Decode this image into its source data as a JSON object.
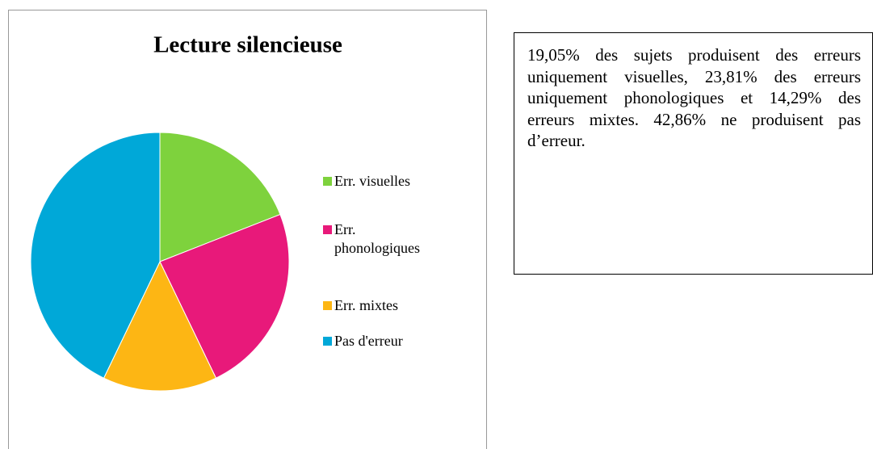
{
  "chart_data": {
    "type": "pie",
    "title": "Lecture silencieuse",
    "categories": [
      "Err. visuelles",
      "Err. phonologiques",
      "Err. mixtes",
      "Pas d'erreur"
    ],
    "values": [
      19.05,
      23.81,
      14.29,
      42.86
    ],
    "colors": [
      "#7ed23d",
      "#e8197a",
      "#fdb614",
      "#00a8d8"
    ],
    "legend": "right"
  },
  "note": {
    "text": "19,05% des sujets produisent des erreurs uniquement visuelles, 23,81% des erreurs uniquement phonologiques et 14,29% des erreurs mixtes. 42,86% ne produisent pas d’erreur."
  }
}
